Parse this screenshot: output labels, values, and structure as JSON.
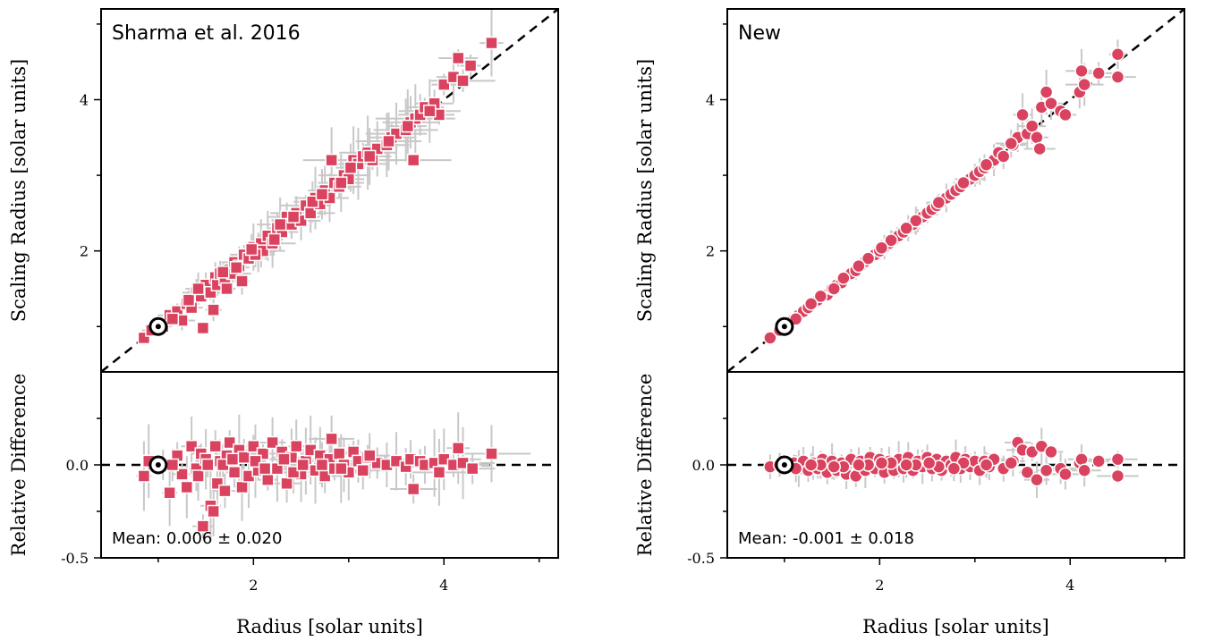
{
  "colors": {
    "marker": "#d9435f",
    "marker_edge": "#ffffff",
    "error_bar": "#c8c8c8",
    "sun_marker": "#000000",
    "reference_line": "#000000"
  },
  "chart_data": [
    {
      "type": "scatter",
      "title": "Sharma et al. 2016",
      "marker": "square",
      "xlabel": "Radius [solar units]",
      "ylabel_top": "Scaling Radius [solar units]",
      "ylabel_bottom": "Relative Difference",
      "xlim": [
        0.4,
        5.2
      ],
      "ylim_top": [
        0.4,
        5.2
      ],
      "ylim_bottom": [
        -0.5,
        0.5
      ],
      "x_ticks": [
        "2",
        "4"
      ],
      "y_ticks_top": [
        "2",
        "4"
      ],
      "y_ticks_bottom": [
        "0.0",
        "-0.5"
      ],
      "reference_line": "y = x (dashed)",
      "sun_point": [
        1.0,
        1.0
      ],
      "mean_text": "Mean: 0.006 ± 0.020",
      "points": [
        [
          0.85,
          0.85
        ],
        [
          0.93,
          0.95
        ],
        [
          1.05,
          1.0
        ],
        [
          1.12,
          1.15
        ],
        [
          1.2,
          1.2
        ],
        [
          1.25,
          1.08
        ],
        [
          1.3,
          1.3
        ],
        [
          1.35,
          1.25
        ],
        [
          1.4,
          1.45
        ],
        [
          1.45,
          1.4
        ],
        [
          1.47,
          0.98
        ],
        [
          1.5,
          1.55
        ],
        [
          1.55,
          1.45
        ],
        [
          1.58,
          1.22
        ],
        [
          1.6,
          1.65
        ],
        [
          1.62,
          1.55
        ],
        [
          1.65,
          1.7
        ],
        [
          1.7,
          1.62
        ],
        [
          1.72,
          1.5
        ],
        [
          1.75,
          1.75
        ],
        [
          1.78,
          1.7
        ],
        [
          1.8,
          1.85
        ],
        [
          1.85,
          1.8
        ],
        [
          1.88,
          1.6
        ],
        [
          1.9,
          1.95
        ],
        [
          1.95,
          1.9
        ],
        [
          2.0,
          2.05
        ],
        [
          2.05,
          1.98
        ],
        [
          2.08,
          2.1
        ],
        [
          2.1,
          2.0
        ],
        [
          2.15,
          2.2
        ],
        [
          2.2,
          2.1
        ],
        [
          2.25,
          2.3
        ],
        [
          2.3,
          2.25
        ],
        [
          2.35,
          2.45
        ],
        [
          2.4,
          2.35
        ],
        [
          2.45,
          2.5
        ],
        [
          2.5,
          2.4
        ],
        [
          2.55,
          2.6
        ],
        [
          2.6,
          2.5
        ],
        [
          2.65,
          2.7
        ],
        [
          2.7,
          2.62
        ],
        [
          2.75,
          2.8
        ],
        [
          2.8,
          2.7
        ],
        [
          2.82,
          3.2
        ],
        [
          2.85,
          2.9
        ],
        [
          2.9,
          2.85
        ],
        [
          2.95,
          3.0
        ],
        [
          3.0,
          2.95
        ],
        [
          3.05,
          3.2
        ],
        [
          3.1,
          3.15
        ],
        [
          3.15,
          3.25
        ],
        [
          3.2,
          3.3
        ],
        [
          3.25,
          3.2
        ],
        [
          3.3,
          3.35
        ],
        [
          3.4,
          3.4
        ],
        [
          3.45,
          3.5
        ],
        [
          3.5,
          3.55
        ],
        [
          3.6,
          3.6
        ],
        [
          3.65,
          3.7
        ],
        [
          3.7,
          3.75
        ],
        [
          3.68,
          3.2
        ],
        [
          3.75,
          3.8
        ],
        [
          3.8,
          3.9
        ],
        [
          3.9,
          3.95
        ],
        [
          3.95,
          3.8
        ],
        [
          4.0,
          4.2
        ],
        [
          4.1,
          4.3
        ],
        [
          4.15,
          4.55
        ],
        [
          4.2,
          4.25
        ],
        [
          4.28,
          4.45
        ],
        [
          4.5,
          4.75
        ],
        [
          1.15,
          1.1
        ],
        [
          1.32,
          1.35
        ],
        [
          1.42,
          1.5
        ],
        [
          1.68,
          1.72
        ],
        [
          1.82,
          1.78
        ],
        [
          2.02,
          1.95
        ],
        [
          2.22,
          2.15
        ],
        [
          2.42,
          2.45
        ],
        [
          2.62,
          2.65
        ],
        [
          2.72,
          2.75
        ],
        [
          2.92,
          2.9
        ],
        [
          3.02,
          3.1
        ],
        [
          3.22,
          3.25
        ],
        [
          3.42,
          3.45
        ],
        [
          3.62,
          3.65
        ],
        [
          3.85,
          3.85
        ],
        [
          2.28,
          2.35
        ],
        [
          1.98,
          2.02
        ]
      ],
      "residuals": [
        [
          0.85,
          -0.06
        ],
        [
          0.9,
          0.02
        ],
        [
          1.05,
          0.0
        ],
        [
          1.12,
          -0.15
        ],
        [
          1.2,
          0.05
        ],
        [
          1.25,
          -0.05
        ],
        [
          1.3,
          -0.12
        ],
        [
          1.35,
          0.1
        ],
        [
          1.4,
          -0.02
        ],
        [
          1.45,
          0.06
        ],
        [
          1.47,
          -0.33
        ],
        [
          1.5,
          0.03
        ],
        [
          1.55,
          -0.22
        ],
        [
          1.58,
          -0.25
        ],
        [
          1.6,
          0.1
        ],
        [
          1.62,
          -0.1
        ],
        [
          1.65,
          0.02
        ],
        [
          1.7,
          -0.14
        ],
        [
          1.72,
          0.05
        ],
        [
          1.75,
          0.12
        ],
        [
          1.8,
          -0.04
        ],
        [
          1.85,
          0.08
        ],
        [
          1.88,
          -0.12
        ],
        [
          1.9,
          0.04
        ],
        [
          1.95,
          -0.06
        ],
        [
          2.0,
          0.1
        ],
        [
          2.05,
          -0.03
        ],
        [
          2.1,
          0.06
        ],
        [
          2.15,
          -0.08
        ],
        [
          2.2,
          0.12
        ],
        [
          2.25,
          -0.02
        ],
        [
          2.3,
          0.07
        ],
        [
          2.35,
          -0.1
        ],
        [
          2.4,
          0.04
        ],
        [
          2.45,
          0.1
        ],
        [
          2.5,
          -0.05
        ],
        [
          2.55,
          0.02
        ],
        [
          2.6,
          0.08
        ],
        [
          2.65,
          -0.03
        ],
        [
          2.7,
          0.05
        ],
        [
          2.75,
          -0.06
        ],
        [
          2.8,
          0.03
        ],
        [
          2.82,
          0.14
        ],
        [
          2.85,
          -0.02
        ],
        [
          2.9,
          0.06
        ],
        [
          2.95,
          0.0
        ],
        [
          3.0,
          -0.04
        ],
        [
          3.05,
          0.07
        ],
        [
          3.1,
          0.02
        ],
        [
          3.15,
          -0.03
        ],
        [
          3.2,
          0.04
        ],
        [
          3.3,
          0.01
        ],
        [
          3.4,
          0.0
        ],
        [
          3.5,
          0.02
        ],
        [
          3.6,
          -0.01
        ],
        [
          3.65,
          0.03
        ],
        [
          3.68,
          -0.13
        ],
        [
          3.75,
          0.02
        ],
        [
          3.8,
          0.0
        ],
        [
          3.9,
          0.01
        ],
        [
          3.95,
          -0.04
        ],
        [
          4.0,
          0.03
        ],
        [
          4.1,
          0.0
        ],
        [
          4.15,
          0.09
        ],
        [
          4.2,
          0.01
        ],
        [
          4.3,
          -0.02
        ],
        [
          4.5,
          0.06
        ],
        [
          1.15,
          0.0
        ],
        [
          1.42,
          -0.06
        ],
        [
          1.68,
          0.0
        ],
        [
          2.02,
          0.02
        ],
        [
          2.42,
          -0.04
        ],
        [
          2.72,
          0.0
        ],
        [
          3.22,
          0.05
        ],
        [
          1.78,
          0.03
        ],
        [
          2.12,
          -0.02
        ],
        [
          2.32,
          0.03
        ],
        [
          2.52,
          0.0
        ],
        [
          2.92,
          -0.02
        ],
        [
          1.52,
          0.0
        ]
      ]
    },
    {
      "type": "scatter",
      "title": "New",
      "marker": "circle",
      "xlabel": "Radius [solar units]",
      "ylabel_top": "Scaling Radius [solar units]",
      "ylabel_bottom": "Relative Difference",
      "xlim": [
        0.4,
        5.2
      ],
      "ylim_top": [
        0.4,
        5.2
      ],
      "ylim_bottom": [
        -0.5,
        0.5
      ],
      "x_ticks": [
        "2",
        "4"
      ],
      "y_ticks_top": [
        "2",
        "4"
      ],
      "y_ticks_bottom": [
        "0.0",
        "-0.5"
      ],
      "reference_line": "y = x (dashed)",
      "sun_point": [
        1.0,
        1.0
      ],
      "mean_text": "Mean: -0.001 ± 0.018",
      "points": [
        [
          0.85,
          0.85
        ],
        [
          0.95,
          0.95
        ],
        [
          1.1,
          1.1
        ],
        [
          1.15,
          1.15
        ],
        [
          1.2,
          1.2
        ],
        [
          1.25,
          1.25
        ],
        [
          1.3,
          1.3
        ],
        [
          1.35,
          1.35
        ],
        [
          1.4,
          1.4
        ],
        [
          1.45,
          1.42
        ],
        [
          1.5,
          1.5
        ],
        [
          1.55,
          1.55
        ],
        [
          1.6,
          1.58
        ],
        [
          1.65,
          1.66
        ],
        [
          1.7,
          1.7
        ],
        [
          1.75,
          1.74
        ],
        [
          1.8,
          1.8
        ],
        [
          1.85,
          1.86
        ],
        [
          1.9,
          1.9
        ],
        [
          1.95,
          1.95
        ],
        [
          2.0,
          2.0
        ],
        [
          2.05,
          2.05
        ],
        [
          2.1,
          2.1
        ],
        [
          2.15,
          2.15
        ],
        [
          2.2,
          2.2
        ],
        [
          2.25,
          2.25
        ],
        [
          2.3,
          2.3
        ],
        [
          2.35,
          2.35
        ],
        [
          2.4,
          2.4
        ],
        [
          2.45,
          2.45
        ],
        [
          2.5,
          2.5
        ],
        [
          2.55,
          2.55
        ],
        [
          2.6,
          2.6
        ],
        [
          2.65,
          2.65
        ],
        [
          2.7,
          2.7
        ],
        [
          2.75,
          2.75
        ],
        [
          2.8,
          2.8
        ],
        [
          2.85,
          2.85
        ],
        [
          2.9,
          2.9
        ],
        [
          2.95,
          2.95
        ],
        [
          3.0,
          3.0
        ],
        [
          3.05,
          3.05
        ],
        [
          3.1,
          3.1
        ],
        [
          3.15,
          3.15
        ],
        [
          3.2,
          3.2
        ],
        [
          3.25,
          3.3
        ],
        [
          3.3,
          3.25
        ],
        [
          3.4,
          3.4
        ],
        [
          3.45,
          3.5
        ],
        [
          3.5,
          3.8
        ],
        [
          3.55,
          3.55
        ],
        [
          3.6,
          3.65
        ],
        [
          3.65,
          3.5
        ],
        [
          3.68,
          3.35
        ],
        [
          3.7,
          3.9
        ],
        [
          3.75,
          4.1
        ],
        [
          3.8,
          3.95
        ],
        [
          3.9,
          3.85
        ],
        [
          3.95,
          3.8
        ],
        [
          4.1,
          4.1
        ],
        [
          4.12,
          4.38
        ],
        [
          4.15,
          4.2
        ],
        [
          4.3,
          4.35
        ],
        [
          4.5,
          4.6
        ],
        [
          4.5,
          4.3
        ],
        [
          1.12,
          1.1
        ],
        [
          1.38,
          1.4
        ],
        [
          1.62,
          1.64
        ],
        [
          1.88,
          1.9
        ],
        [
          2.12,
          2.14
        ],
        [
          2.38,
          2.4
        ],
        [
          2.62,
          2.64
        ],
        [
          2.88,
          2.9
        ],
        [
          3.12,
          3.14
        ],
        [
          3.38,
          3.42
        ],
        [
          1.28,
          1.3
        ],
        [
          1.52,
          1.5
        ],
        [
          1.78,
          1.8
        ],
        [
          2.02,
          2.04
        ],
        [
          2.28,
          2.3
        ]
      ],
      "residuals": [
        [
          0.85,
          -0.01
        ],
        [
          0.95,
          0.0
        ],
        [
          1.1,
          0.01
        ],
        [
          1.15,
          -0.02
        ],
        [
          1.2,
          0.02
        ],
        [
          1.25,
          -0.03
        ],
        [
          1.3,
          0.01
        ],
        [
          1.35,
          -0.02
        ],
        [
          1.4,
          0.03
        ],
        [
          1.45,
          -0.04
        ],
        [
          1.5,
          0.02
        ],
        [
          1.55,
          -0.03
        ],
        [
          1.6,
          0.01
        ],
        [
          1.65,
          -0.05
        ],
        [
          1.7,
          0.03
        ],
        [
          1.75,
          -0.06
        ],
        [
          1.8,
          0.02
        ],
        [
          1.85,
          -0.03
        ],
        [
          1.9,
          0.04
        ],
        [
          1.95,
          -0.02
        ],
        [
          2.0,
          0.03
        ],
        [
          2.05,
          -0.04
        ],
        [
          2.1,
          0.02
        ],
        [
          2.15,
          -0.03
        ],
        [
          2.2,
          0.03
        ],
        [
          2.25,
          -0.02
        ],
        [
          2.3,
          0.04
        ],
        [
          2.35,
          -0.03
        ],
        [
          2.4,
          0.02
        ],
        [
          2.45,
          -0.01
        ],
        [
          2.5,
          0.04
        ],
        [
          2.55,
          -0.02
        ],
        [
          2.6,
          0.03
        ],
        [
          2.65,
          -0.03
        ],
        [
          2.7,
          0.02
        ],
        [
          2.75,
          0.0
        ],
        [
          2.8,
          0.04
        ],
        [
          2.85,
          -0.02
        ],
        [
          2.9,
          0.03
        ],
        [
          2.95,
          -0.01
        ],
        [
          3.0,
          0.02
        ],
        [
          3.05,
          -0.03
        ],
        [
          3.1,
          0.02
        ],
        [
          3.15,
          -0.01
        ],
        [
          3.2,
          0.03
        ],
        [
          3.3,
          -0.02
        ],
        [
          3.4,
          0.02
        ],
        [
          3.45,
          0.12
        ],
        [
          3.5,
          0.08
        ],
        [
          3.55,
          -0.04
        ],
        [
          3.6,
          0.07
        ],
        [
          3.65,
          -0.08
        ],
        [
          3.7,
          0.1
        ],
        [
          3.75,
          -0.03
        ],
        [
          3.8,
          0.07
        ],
        [
          3.9,
          -0.02
        ],
        [
          3.95,
          -0.05
        ],
        [
          4.1,
          0.01
        ],
        [
          4.12,
          0.03
        ],
        [
          4.15,
          -0.03
        ],
        [
          4.3,
          0.02
        ],
        [
          4.5,
          0.03
        ],
        [
          4.5,
          -0.06
        ],
        [
          1.12,
          -0.02
        ],
        [
          1.38,
          0.0
        ],
        [
          1.62,
          -0.01
        ],
        [
          1.88,
          0.0
        ],
        [
          2.12,
          0.01
        ],
        [
          2.38,
          0.0
        ],
        [
          2.62,
          -0.01
        ],
        [
          2.88,
          0.01
        ],
        [
          3.12,
          0.0
        ],
        [
          3.38,
          0.01
        ],
        [
          1.28,
          0.0
        ],
        [
          1.52,
          -0.01
        ],
        [
          1.78,
          0.0
        ],
        [
          2.02,
          0.01
        ],
        [
          2.28,
          0.0
        ],
        [
          2.52,
          0.01
        ],
        [
          2.78,
          -0.02
        ]
      ]
    }
  ]
}
